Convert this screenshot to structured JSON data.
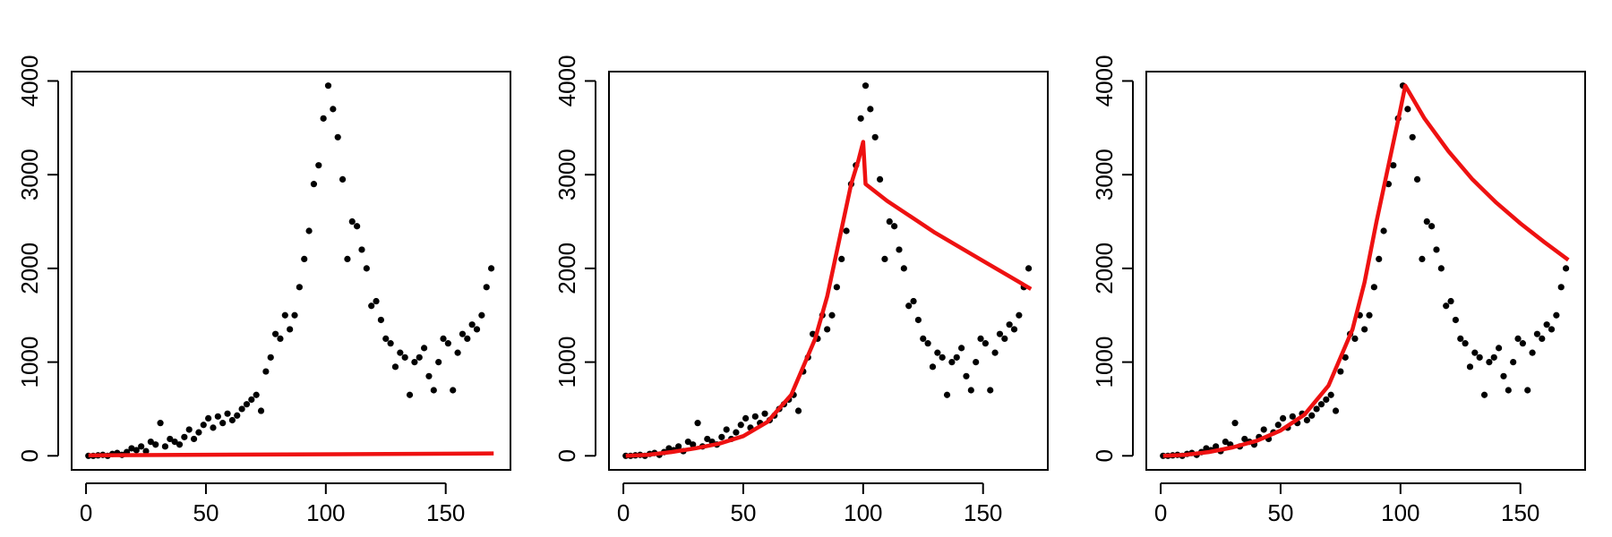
{
  "chart_data": [
    {
      "type": "scatter",
      "point_color": "#000000",
      "x": [
        1,
        3,
        5,
        7,
        9,
        11,
        13,
        15,
        17,
        19,
        21,
        23,
        25,
        27,
        29,
        31,
        33,
        35,
        37,
        39,
        41,
        43,
        45,
        47,
        49,
        51,
        53,
        55,
        57,
        59,
        61,
        63,
        65,
        67,
        69,
        71,
        73,
        75,
        77,
        79,
        81,
        83,
        85,
        87,
        89,
        91,
        93,
        95,
        97,
        99,
        101,
        103,
        105,
        107,
        109,
        111,
        113,
        115,
        117,
        119,
        121,
        123,
        125,
        127,
        129,
        131,
        133,
        135,
        137,
        139,
        141,
        143,
        145,
        147,
        149,
        151,
        153,
        155,
        157,
        159,
        161,
        163,
        165,
        167,
        169
      ],
      "values": [
        0,
        0,
        5,
        10,
        0,
        20,
        30,
        10,
        40,
        80,
        60,
        100,
        50,
        150,
        120,
        350,
        100,
        180,
        150,
        120,
        200,
        280,
        180,
        250,
        330,
        400,
        300,
        420,
        350,
        450,
        380,
        430,
        500,
        550,
        600,
        650,
        480,
        900,
        1050,
        1300,
        1250,
        1500,
        1350,
        1500,
        1800,
        2100,
        2400,
        2900,
        3100,
        3600,
        3950,
        3700,
        3400,
        2950,
        2100,
        2500,
        2450,
        2200,
        2000,
        1600,
        1650,
        1450,
        1250,
        1200,
        950,
        1100,
        1050,
        650,
        1000,
        1050,
        1150,
        850,
        700,
        1000,
        1250,
        1200,
        700,
        1100,
        1300,
        1250,
        1400,
        1350,
        1500,
        1800,
        2000
      ],
      "line": {
        "color": "#ee1111",
        "x": [
          1,
          170
        ],
        "values": [
          5,
          25
        ]
      },
      "xlim": [
        -6,
        177
      ],
      "ylim": [
        -150,
        4100
      ],
      "xticks": [
        0,
        50,
        100,
        150
      ],
      "yticks": [
        0,
        1000,
        2000,
        3000,
        4000
      ]
    },
    {
      "type": "scatter",
      "point_color": "#000000",
      "x": [
        1,
        3,
        5,
        7,
        9,
        11,
        13,
        15,
        17,
        19,
        21,
        23,
        25,
        27,
        29,
        31,
        33,
        35,
        37,
        39,
        41,
        43,
        45,
        47,
        49,
        51,
        53,
        55,
        57,
        59,
        61,
        63,
        65,
        67,
        69,
        71,
        73,
        75,
        77,
        79,
        81,
        83,
        85,
        87,
        89,
        91,
        93,
        95,
        97,
        99,
        101,
        103,
        105,
        107,
        109,
        111,
        113,
        115,
        117,
        119,
        121,
        123,
        125,
        127,
        129,
        131,
        133,
        135,
        137,
        139,
        141,
        143,
        145,
        147,
        149,
        151,
        153,
        155,
        157,
        159,
        161,
        163,
        165,
        167,
        169
      ],
      "values": [
        0,
        0,
        5,
        10,
        0,
        20,
        30,
        10,
        40,
        80,
        60,
        100,
        50,
        150,
        120,
        350,
        100,
        180,
        150,
        120,
        200,
        280,
        180,
        250,
        330,
        400,
        300,
        420,
        350,
        450,
        380,
        430,
        500,
        550,
        600,
        650,
        480,
        900,
        1050,
        1300,
        1250,
        1500,
        1350,
        1500,
        1800,
        2100,
        2400,
        2900,
        3100,
        3600,
        3950,
        3700,
        3400,
        2950,
        2100,
        2500,
        2450,
        2200,
        2000,
        1600,
        1650,
        1450,
        1250,
        1200,
        950,
        1100,
        1050,
        650,
        1000,
        1050,
        1150,
        850,
        700,
        1000,
        1250,
        1200,
        700,
        1100,
        1300,
        1250,
        1400,
        1350,
        1500,
        1800,
        2000
      ],
      "line": {
        "color": "#ee1111",
        "x": [
          1,
          10,
          20,
          30,
          40,
          50,
          60,
          70,
          80,
          85,
          90,
          95,
          98,
          100,
          101,
          110,
          120,
          130,
          140,
          150,
          160,
          170
        ],
        "values": [
          0,
          10,
          40,
          80,
          130,
          210,
          360,
          650,
          1250,
          1700,
          2300,
          2900,
          3150,
          3350,
          2900,
          2720,
          2550,
          2380,
          2230,
          2080,
          1930,
          1780
        ]
      },
      "xlim": [
        -6,
        177
      ],
      "ylim": [
        -150,
        4100
      ],
      "xticks": [
        0,
        50,
        100,
        150
      ],
      "yticks": [
        0,
        1000,
        2000,
        3000,
        4000
      ]
    },
    {
      "type": "scatter",
      "point_color": "#000000",
      "x": [
        1,
        3,
        5,
        7,
        9,
        11,
        13,
        15,
        17,
        19,
        21,
        23,
        25,
        27,
        29,
        31,
        33,
        35,
        37,
        39,
        41,
        43,
        45,
        47,
        49,
        51,
        53,
        55,
        57,
        59,
        61,
        63,
        65,
        67,
        69,
        71,
        73,
        75,
        77,
        79,
        81,
        83,
        85,
        87,
        89,
        91,
        93,
        95,
        97,
        99,
        101,
        103,
        105,
        107,
        109,
        111,
        113,
        115,
        117,
        119,
        121,
        123,
        125,
        127,
        129,
        131,
        133,
        135,
        137,
        139,
        141,
        143,
        145,
        147,
        149,
        151,
        153,
        155,
        157,
        159,
        161,
        163,
        165,
        167,
        169
      ],
      "values": [
        0,
        0,
        5,
        10,
        0,
        20,
        30,
        10,
        40,
        80,
        60,
        100,
        50,
        150,
        120,
        350,
        100,
        180,
        150,
        120,
        200,
        280,
        180,
        250,
        330,
        400,
        300,
        420,
        350,
        450,
        380,
        430,
        500,
        550,
        600,
        650,
        480,
        900,
        1050,
        1300,
        1250,
        1500,
        1350,
        1500,
        1800,
        2100,
        2400,
        2900,
        3100,
        3600,
        3950,
        3700,
        3400,
        2950,
        2100,
        2500,
        2450,
        2200,
        2000,
        1600,
        1650,
        1450,
        1250,
        1200,
        950,
        1100,
        1050,
        650,
        1000,
        1050,
        1150,
        850,
        700,
        1000,
        1250,
        1200,
        700,
        1100,
        1300,
        1250,
        1400,
        1350,
        1500,
        1800,
        2000
      ],
      "line": {
        "color": "#ee1111",
        "x": [
          1,
          10,
          20,
          30,
          40,
          50,
          60,
          70,
          80,
          85,
          90,
          95,
          100,
          102,
          110,
          120,
          130,
          140,
          150,
          160,
          170
        ],
        "values": [
          0,
          10,
          40,
          90,
          160,
          270,
          440,
          750,
          1350,
          1850,
          2500,
          3100,
          3700,
          3950,
          3600,
          3250,
          2950,
          2700,
          2480,
          2280,
          2090
        ]
      },
      "xlim": [
        -6,
        177
      ],
      "ylim": [
        -150,
        4100
      ],
      "xticks": [
        0,
        50,
        100,
        150
      ],
      "yticks": [
        0,
        1000,
        2000,
        3000,
        4000
      ]
    }
  ]
}
